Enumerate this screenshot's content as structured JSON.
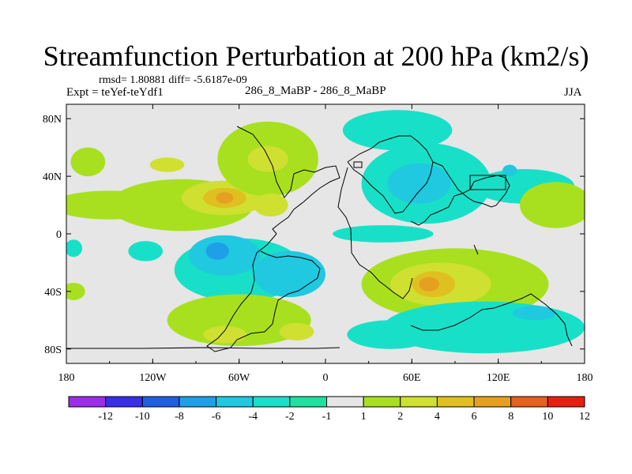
{
  "chart_data": {
    "type": "heatmap",
    "title": "Streamfunction Perturbation at 200 hPa (km2/s)",
    "stats": "rmsd= 1.80881 diff= -5.6187e-09",
    "left_label": "Expt = teYef-teYdf1",
    "center_label": "286_8_MaBP - 286_8_MaBP",
    "right_label": "JJA",
    "x_axis": {
      "range": [
        -180,
        180
      ],
      "ticks": [
        -180,
        -120,
        -60,
        0,
        60,
        120,
        180
      ],
      "tick_labels": [
        "180",
        "120W",
        "60W",
        "0",
        "60E",
        "120E",
        "180"
      ]
    },
    "y_axis": {
      "range": [
        -90,
        90
      ],
      "ticks": [
        80,
        40,
        0,
        -40,
        -80
      ],
      "tick_labels": [
        "80N",
        "40N",
        "0",
        "40S",
        "80S"
      ]
    },
    "colorbar": {
      "labels": [
        "-12",
        "-10",
        "-8",
        "-6",
        "-4",
        "-2",
        "-1",
        "1",
        "2",
        "4",
        "6",
        "8",
        "10",
        "12"
      ],
      "colors": [
        "#9b2ee6",
        "#3a2ee6",
        "#2060e0",
        "#1e9fe8",
        "#20c8e0",
        "#18e0c8",
        "#20e0a0",
        "#e6e6e6",
        "#a8e020",
        "#d0e030",
        "#e0c020",
        "#e6a020",
        "#e66020",
        "#e62010"
      ]
    },
    "anomalies": [
      {
        "lon": 50,
        "lat": 72,
        "rx": 38,
        "ry": 14,
        "level": "-2"
      },
      {
        "lon": 70,
        "lat": 35,
        "rx": 45,
        "ry": 28,
        "level": "-2"
      },
      {
        "lon": 65,
        "lat": 35,
        "rx": 22,
        "ry": 14,
        "level": "-4"
      },
      {
        "lon": 138,
        "lat": 33,
        "rx": 35,
        "ry": 12,
        "level": "-2"
      },
      {
        "lon": 128,
        "lat": 44,
        "rx": 5,
        "ry": 4,
        "level": "-4"
      },
      {
        "lon": -165,
        "lat": 50,
        "rx": 12,
        "ry": 10,
        "level": "2"
      },
      {
        "lon": -150,
        "lat": 20,
        "rx": 40,
        "ry": 10,
        "level": "2"
      },
      {
        "lon": -100,
        "lat": 20,
        "rx": 50,
        "ry": 18,
        "level": "2"
      },
      {
        "lon": -70,
        "lat": 25,
        "rx": 30,
        "ry": 12,
        "level": "4"
      },
      {
        "lon": -70,
        "lat": 25,
        "rx": 15,
        "ry": 7,
        "level": "6"
      },
      {
        "lon": -70,
        "lat": 25,
        "rx": 6,
        "ry": 4,
        "level": "8"
      },
      {
        "lon": -40,
        "lat": 52,
        "rx": 35,
        "ry": 26,
        "level": "2"
      },
      {
        "lon": -40,
        "lat": 52,
        "rx": 14,
        "ry": 9,
        "level": "4"
      },
      {
        "lon": -110,
        "lat": 48,
        "rx": 12,
        "ry": 5,
        "level": "4"
      },
      {
        "lon": -60,
        "lat": -25,
        "rx": 45,
        "ry": 22,
        "level": "-2"
      },
      {
        "lon": -70,
        "lat": -15,
        "rx": 25,
        "ry": 14,
        "level": "-4"
      },
      {
        "lon": -75,
        "lat": -12,
        "rx": 8,
        "ry": 6,
        "level": "-6"
      },
      {
        "lon": -25,
        "lat": -28,
        "rx": 25,
        "ry": 16,
        "level": "-4"
      },
      {
        "lon": -60,
        "lat": -60,
        "rx": 50,
        "ry": 18,
        "level": "2"
      },
      {
        "lon": -70,
        "lat": -70,
        "rx": 15,
        "ry": 6,
        "level": "4"
      },
      {
        "lon": -20,
        "lat": -68,
        "rx": 12,
        "ry": 6,
        "level": "4"
      },
      {
        "lon": -175,
        "lat": -40,
        "rx": 8,
        "ry": 6,
        "level": "2"
      },
      {
        "lon": 90,
        "lat": -35,
        "rx": 65,
        "ry": 25,
        "level": "2"
      },
      {
        "lon": 80,
        "lat": -35,
        "rx": 35,
        "ry": 15,
        "level": "4"
      },
      {
        "lon": 75,
        "lat": -35,
        "rx": 15,
        "ry": 9,
        "level": "6"
      },
      {
        "lon": 72,
        "lat": -35,
        "rx": 7,
        "ry": 5,
        "level": "8"
      },
      {
        "lon": 110,
        "lat": -65,
        "rx": 70,
        "ry": 18,
        "level": "-2"
      },
      {
        "lon": 145,
        "lat": -55,
        "rx": 15,
        "ry": 5,
        "level": "-4"
      },
      {
        "lon": 45,
        "lat": -70,
        "rx": 30,
        "ry": 10,
        "level": "-2"
      },
      {
        "lon": 40,
        "lat": 0,
        "rx": 35,
        "ry": 6,
        "level": "-2"
      },
      {
        "lon": -125,
        "lat": -12,
        "rx": 12,
        "ry": 7,
        "level": "-2"
      },
      {
        "lon": -175,
        "lat": -10,
        "rx": 6,
        "ry": 6,
        "level": "-2"
      },
      {
        "lon": 160,
        "lat": 20,
        "rx": 25,
        "ry": 16,
        "level": "2"
      },
      {
        "lon": -38,
        "lat": 20,
        "rx": 12,
        "ry": 8,
        "level": "4"
      }
    ]
  }
}
